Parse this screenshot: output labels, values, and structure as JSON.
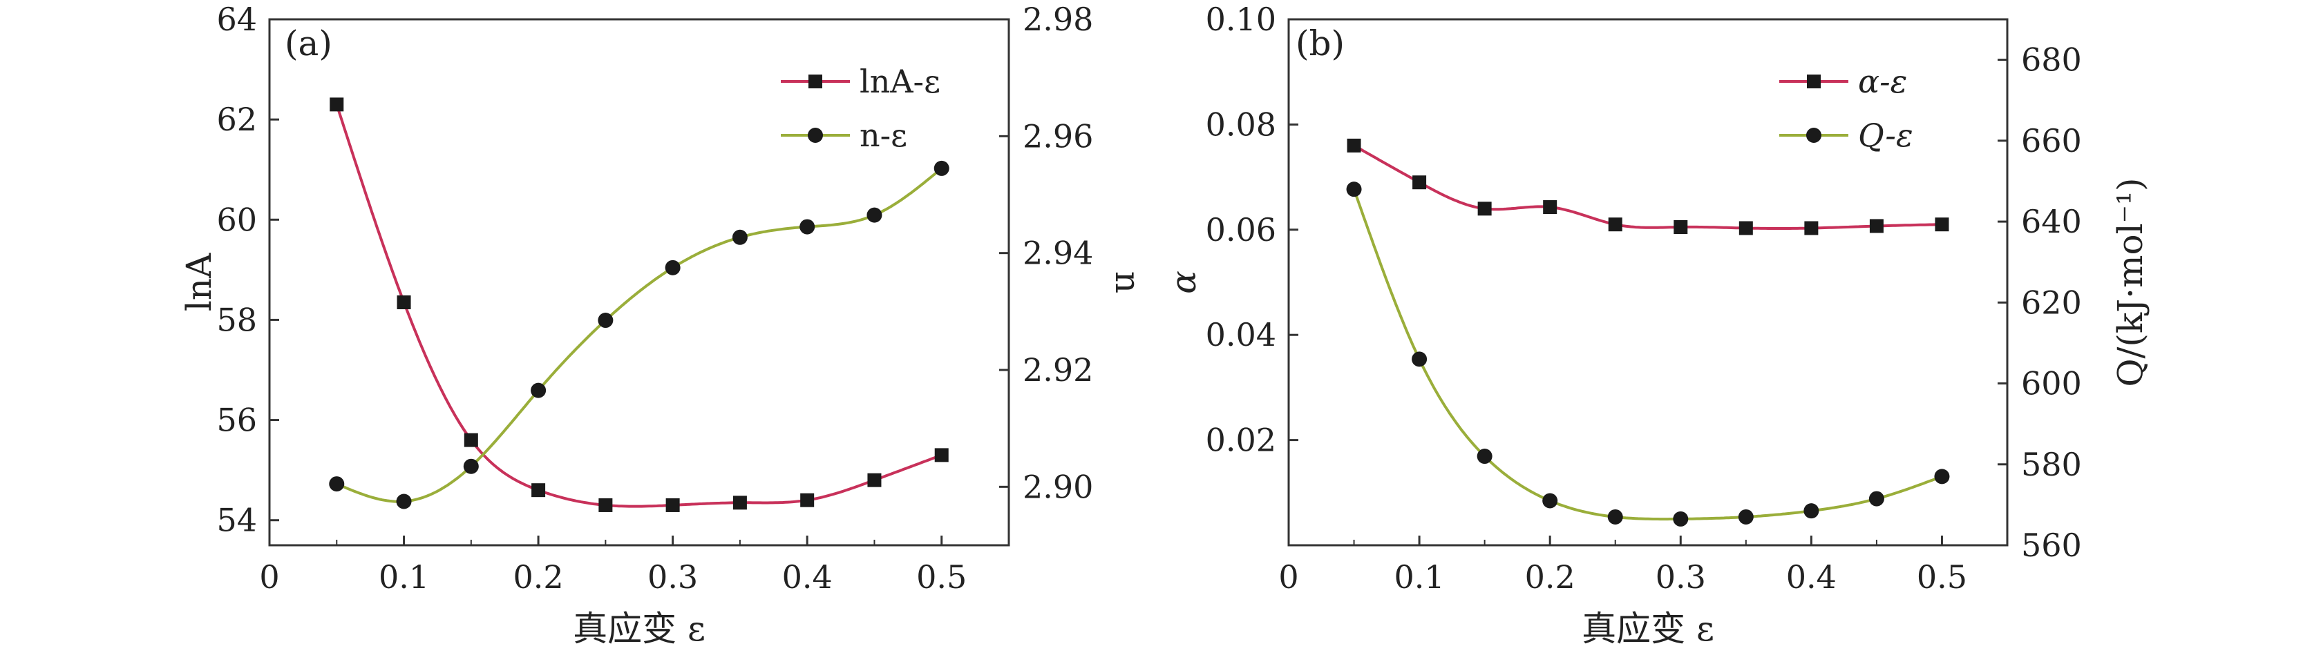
{
  "chart_data": [
    {
      "type": "line",
      "panel_label": "(a)",
      "xlabel": "真应变 ε",
      "ylabel_left": "lnA",
      "ylabel_right": "n",
      "xlim": [
        0,
        0.55
      ],
      "ylim_left": [
        53.5,
        64
      ],
      "ylim_right": [
        2.89,
        2.98
      ],
      "x_ticks": [
        "0",
        "0.1",
        "0.2",
        "0.3",
        "0.4",
        "0.5"
      ],
      "y_left_ticks": [
        "54",
        "56",
        "58",
        "60",
        "62",
        "64"
      ],
      "y_right_ticks": [
        "2.90",
        "2.92",
        "2.94",
        "2.96",
        "2.98"
      ],
      "legend_position": "top-right",
      "x": [
        0.05,
        0.1,
        0.15,
        0.2,
        0.25,
        0.3,
        0.35,
        0.4,
        0.45,
        0.5
      ],
      "series": [
        {
          "name": "lnA-ε",
          "axis": "left",
          "marker": "square",
          "color": "#c8315a",
          "values": [
            62.3,
            58.35,
            55.6,
            54.6,
            54.3,
            54.3,
            54.35,
            54.4,
            54.8,
            55.3
          ]
        },
        {
          "name": "n-ε",
          "axis": "right",
          "marker": "circle",
          "color": "#9aae3a",
          "values": [
            2.9005,
            2.8975,
            2.9035,
            2.9165,
            2.9285,
            2.9375,
            2.9427,
            2.9445,
            2.9465,
            2.9545
          ]
        }
      ]
    },
    {
      "type": "line",
      "panel_label": "(b)",
      "xlabel": "真应变 ε",
      "ylabel_left": "α",
      "ylabel_right": "Q/(kJ·mol⁻¹)",
      "xlim": [
        0,
        0.55
      ],
      "ylim_left": [
        0.0,
        0.1
      ],
      "ylim_right": [
        560,
        690
      ],
      "x_ticks": [
        "0",
        "0.1",
        "0.2",
        "0.3",
        "0.4",
        "0.5"
      ],
      "y_left_ticks": [
        "0.02",
        "0.04",
        "0.06",
        "0.08",
        "0.10"
      ],
      "y_right_ticks": [
        "560",
        "580",
        "600",
        "620",
        "640",
        "660",
        "680"
      ],
      "legend_position": "top-right",
      "x": [
        0.05,
        0.1,
        0.15,
        0.2,
        0.25,
        0.3,
        0.35,
        0.4,
        0.45,
        0.5
      ],
      "series": [
        {
          "name": "α-ε",
          "axis": "left",
          "marker": "square",
          "color": "#c8315a",
          "values": [
            0.076,
            0.069,
            0.064,
            0.0643,
            0.061,
            0.0605,
            0.0603,
            0.0603,
            0.0607,
            0.061
          ]
        },
        {
          "name": "Q-ε",
          "axis": "right",
          "marker": "circle",
          "color": "#9aae3a",
          "values": [
            648,
            606,
            582,
            571,
            567,
            566.5,
            567,
            568.5,
            571.5,
            577
          ]
        }
      ]
    }
  ]
}
